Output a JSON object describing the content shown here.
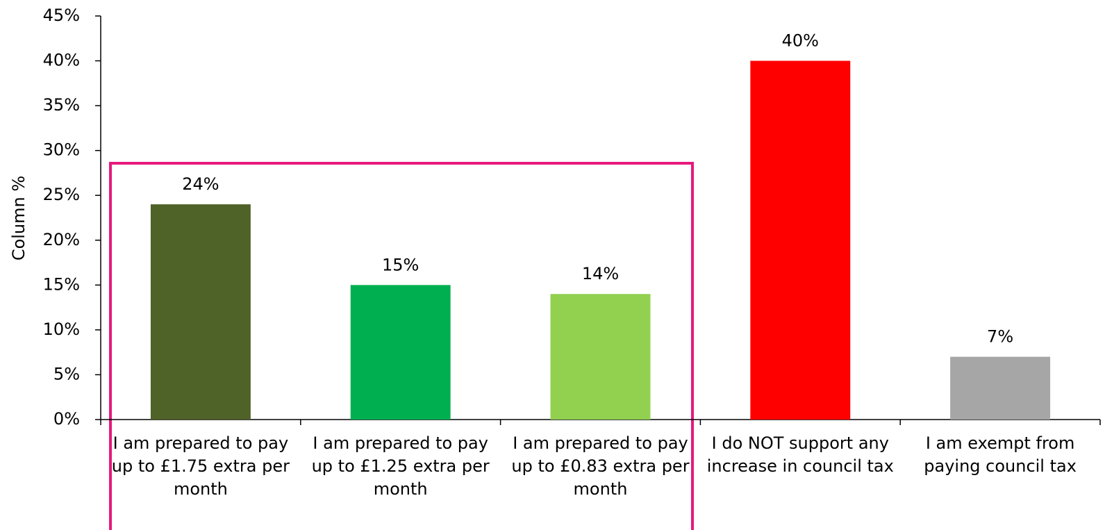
{
  "chart_data": {
    "type": "bar",
    "y_label": "Column %",
    "categories": [
      "I am prepared to pay up to £1.75 extra per month",
      "I am prepared to pay up to £1.25 extra per month",
      "I am prepared to pay up to £0.83 extra per month",
      "I do NOT support any increase in council tax",
      "I am exempt from paying council tax"
    ],
    "values": [
      24,
      15,
      14,
      40,
      7
    ],
    "value_labels": [
      "24%",
      "15%",
      "14%",
      "40%",
      "7%"
    ],
    "colors": [
      "#4f6228",
      "#00b050",
      "#92d050",
      "#ff0000",
      "#a6a6a6"
    ],
    "ylim": [
      0,
      45
    ],
    "yticks": [
      {
        "value": 0,
        "label": "0%"
      },
      {
        "value": 5,
        "label": "5%"
      },
      {
        "value": 10,
        "label": "10%"
      },
      {
        "value": 15,
        "label": "15%"
      },
      {
        "value": 20,
        "label": "20%"
      },
      {
        "value": 25,
        "label": "25%"
      },
      {
        "value": 30,
        "label": "30%"
      },
      {
        "value": 35,
        "label": "35%"
      },
      {
        "value": 40,
        "label": "40%"
      },
      {
        "value": 45,
        "label": "45%"
      }
    ],
    "grid": false
  }
}
